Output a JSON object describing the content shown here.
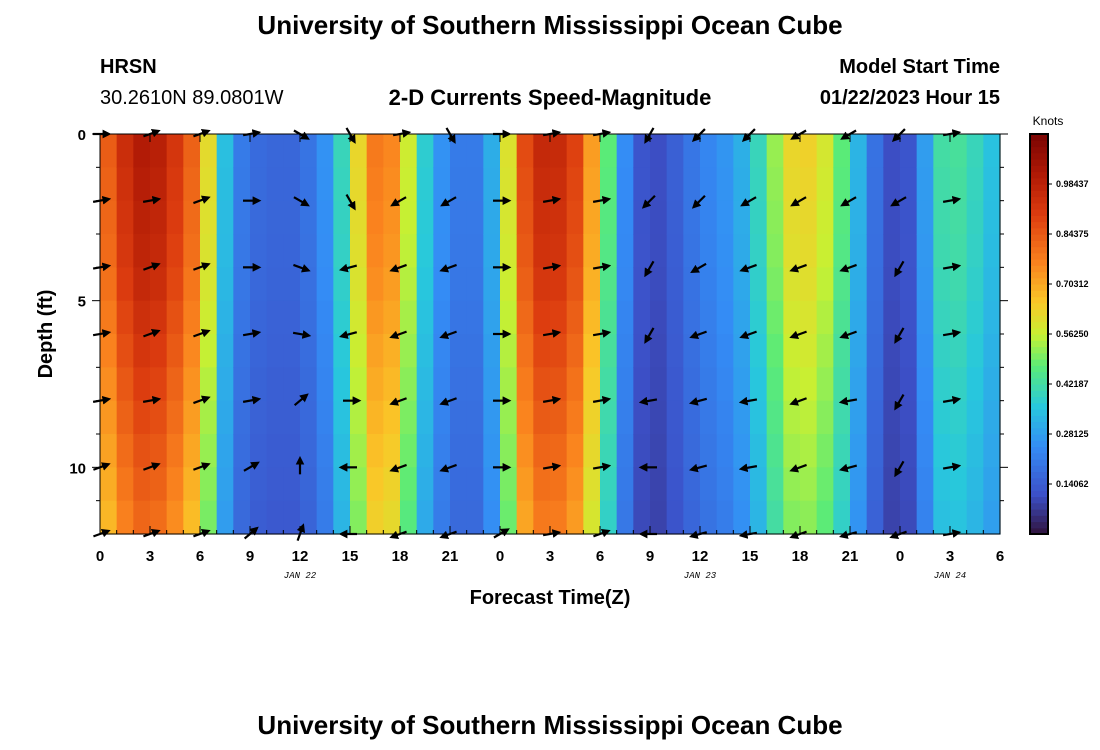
{
  "header": {
    "title": "University of Southern Mississippi Ocean Cube",
    "station": "HRSN",
    "coords": "30.2610N  89.0801W",
    "subtitle": "2-D Currents Speed-Magnitude",
    "model_start_label": "Model Start Time",
    "model_start_value": "01/22/2023 Hour 15"
  },
  "footer": {
    "title": "University of Southern Mississippi Ocean Cube"
  },
  "chart_data": {
    "type": "heatmap",
    "title": "2-D Currents Speed-Magnitude",
    "xlabel": "Forecast Time(Z)",
    "ylabel": "Depth (ft)",
    "x_unit": "hours",
    "xlim": [
      0,
      54
    ],
    "ylim": [
      0,
      12
    ],
    "x_ticks": [
      0,
      3,
      6,
      9,
      12,
      15,
      18,
      21,
      24,
      27,
      30,
      33,
      36,
      39,
      42,
      45,
      48,
      51,
      54
    ],
    "x_tick_labels": [
      "0",
      "3",
      "6",
      "9",
      "12",
      "15",
      "18",
      "21",
      "0",
      "3",
      "6",
      "9",
      "12",
      "15",
      "18",
      "21",
      "0",
      "3",
      "6"
    ],
    "y_ticks": [
      0,
      5,
      10
    ],
    "y_tick_labels": [
      "0",
      "5",
      "10"
    ],
    "date_labels": [
      {
        "hour": 12,
        "label": "JAN 22"
      },
      {
        "hour": 36,
        "label": "JAN 23"
      },
      {
        "hour": 51,
        "label": "JAN 24"
      }
    ],
    "colorbar": {
      "unit": "Knots",
      "min": 0,
      "max": 1.125,
      "tick_values": [
        0.140625,
        0.28125,
        0.421875,
        0.5625,
        0.703125,
        0.84375,
        0.984375
      ],
      "tick_labels": [
        "0.14062",
        "0.28125",
        "0.42187",
        "0.56250",
        "0.70312",
        "0.84375",
        "0.98437"
      ]
    },
    "speed_by_hour": [
      0.78,
      0.9,
      1.0,
      1.02,
      0.97,
      0.88,
      0.78,
      0.45,
      0.24,
      0.18,
      0.17,
      0.16,
      0.17,
      0.22,
      0.3,
      0.5,
      0.75,
      0.82,
      0.7,
      0.45,
      0.3,
      0.22,
      0.2,
      0.22,
      0.4,
      0.8,
      0.95,
      0.98,
      0.94,
      0.85,
      0.6,
      0.35,
      0.15,
      0.1,
      0.12,
      0.18,
      0.22,
      0.25,
      0.28,
      0.35,
      0.45,
      0.6,
      0.65,
      0.62,
      0.55,
      0.4,
      0.25,
      0.13,
      0.09,
      0.16,
      0.4,
      0.45,
      0.42,
      0.38,
      0.32
    ],
    "depth_speed_modifier": [
      1.0,
      0.99,
      0.98,
      0.97,
      0.96,
      0.94,
      0.92,
      0.9,
      0.88,
      0.86,
      0.84,
      0.82,
      0.8
    ],
    "vector_depths": [
      0,
      2,
      4,
      6,
      8,
      10,
      12
    ],
    "vector_hours": [
      0,
      3,
      6,
      9,
      12,
      15,
      18,
      21,
      24,
      27,
      30,
      33,
      36,
      39,
      42,
      45,
      48,
      51
    ],
    "vector_direction_deg": [
      [
        0,
        20,
        20,
        10,
        -30,
        -60,
        10,
        -60,
        0,
        10,
        10,
        -120,
        -135,
        -135,
        -150,
        -150,
        -135,
        10
      ],
      [
        10,
        10,
        20,
        0,
        -30,
        -60,
        -150,
        -150,
        0,
        10,
        10,
        -135,
        -135,
        -150,
        -150,
        -150,
        -150,
        10
      ],
      [
        10,
        20,
        20,
        0,
        -20,
        -165,
        -160,
        -160,
        0,
        10,
        10,
        -120,
        -150,
        -160,
        -160,
        -160,
        -120,
        10
      ],
      [
        10,
        20,
        20,
        10,
        -10,
        -165,
        -160,
        -160,
        0,
        10,
        10,
        -120,
        -160,
        -160,
        -160,
        -160,
        -120,
        10
      ],
      [
        10,
        10,
        20,
        10,
        40,
        0,
        -160,
        -160,
        0,
        10,
        10,
        -170,
        -165,
        -170,
        -160,
        -170,
        -120,
        10
      ],
      [
        20,
        20,
        20,
        30,
        90,
        -180,
        -160,
        -160,
        0,
        10,
        10,
        180,
        -165,
        -170,
        -160,
        -165,
        -120,
        10
      ],
      [
        20,
        20,
        20,
        40,
        70,
        180,
        -160,
        -160,
        30,
        10,
        20,
        180,
        -165,
        -170,
        -160,
        -165,
        -160,
        10
      ]
    ]
  }
}
